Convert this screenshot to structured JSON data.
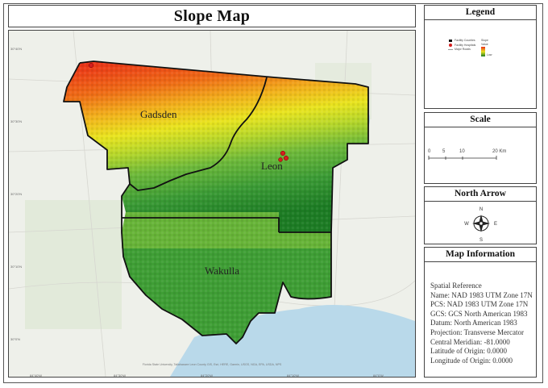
{
  "title": "Slope Map",
  "legend": {
    "heading": "Legend",
    "items": [
      {
        "label": "Facility Counties",
        "icon": "square-icon"
      },
      {
        "label": "Facility Hospitals",
        "icon": "dot-icon"
      },
      {
        "label": "Major Roads",
        "icon": "line-icon"
      }
    ],
    "ramp_heading": "Slope",
    "ramp_high": "Value",
    "ramp_low": "Low",
    "colors": {
      "high": "#ea2a18",
      "mid": "#e9e41f",
      "low": "#1d7c24"
    }
  },
  "scale": {
    "heading": "Scale",
    "labels": [
      "0",
      "5",
      "10",
      "20 Km"
    ],
    "ticks_km": [
      0,
      5,
      10,
      20
    ]
  },
  "north_arrow": {
    "heading": "North Arrow",
    "n": "N",
    "e": "E",
    "s": "S",
    "w": "W"
  },
  "map_info": {
    "heading": "Map Information",
    "lines": [
      "Spatial Reference",
      "Name: NAD 1983 UTM Zone 17N",
      "PCS: NAD 1983 UTM Zone 17N",
      "GCS: GCS North American 1983",
      "Datum: North American 1983",
      "Projection: Transverse Mercator",
      "Central Meridian: -81.0000",
      "Latitude of Origin: 0.0000",
      "Longitude of Origin: 0.0000"
    ]
  },
  "map": {
    "counties": [
      "Gadsden",
      "Leon",
      "Wakulla"
    ],
    "attribution": "Florida State University, Tallahassee Leon County GIS, Esri, HERE, Garmin, USGS, NGA, EPA, USDA, NPS",
    "lon_ticks": [
      "84°40'W",
      "84°30'W",
      "84°20'W",
      "84°10'W",
      "84°0'W"
    ],
    "lat_ticks": [
      "30°40'N",
      "30°30'N",
      "30°20'N",
      "30°10'N",
      "30°0'N"
    ]
  }
}
